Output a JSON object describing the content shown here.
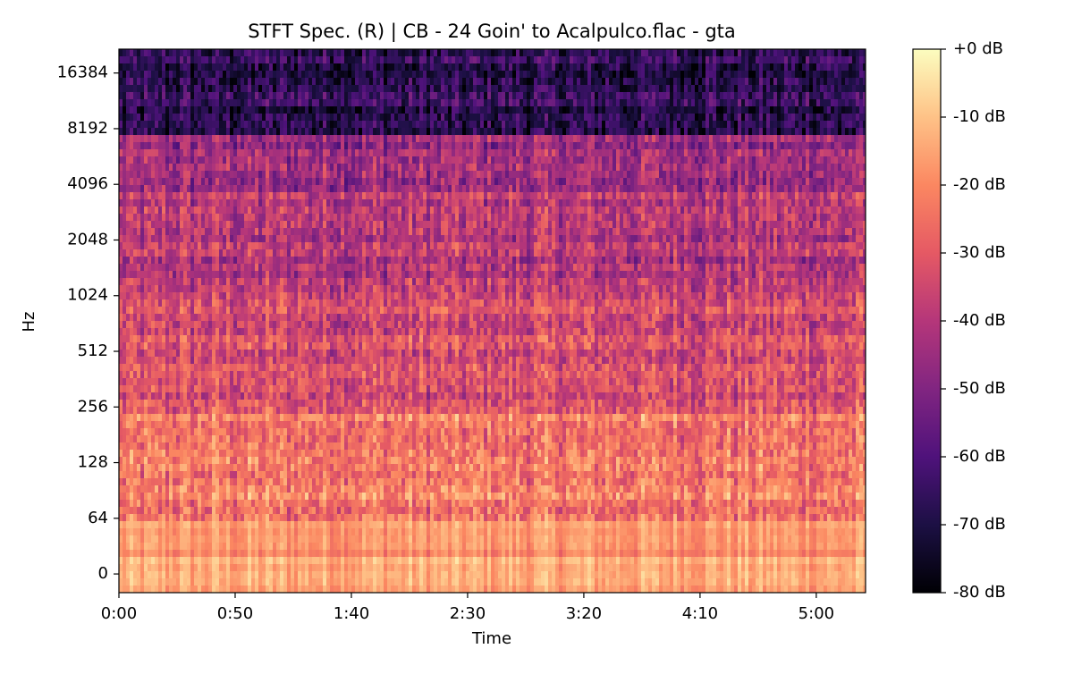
{
  "chart_data": {
    "type": "spectrogram",
    "title": "STFT Spec. (R) | CB - 24 Goin' to Acalpulco.flac - gta",
    "x_label": "Time",
    "y_label": "Hz",
    "xlim": [
      0,
      321.2
    ],
    "xticks": [
      {
        "value": 0,
        "label": "0:00"
      },
      {
        "value": 50,
        "label": "0:50"
      },
      {
        "value": 100,
        "label": "1:40"
      },
      {
        "value": 150,
        "label": "2:30"
      },
      {
        "value": 200,
        "label": "3:20"
      },
      {
        "value": 250,
        "label": "4:10"
      },
      {
        "value": 300,
        "label": "5:00"
      }
    ],
    "yscale": "symlog",
    "ylinthresh": 64,
    "ylim": [
      -21.5,
      22050
    ],
    "yticks": [
      0,
      64,
      128,
      256,
      512,
      1024,
      2048,
      4096,
      8192,
      16384
    ],
    "colormap": "magma",
    "clim": [
      -80,
      0
    ],
    "cticks": [
      {
        "value": 0,
        "label": "+0 dB"
      },
      {
        "value": -10,
        "label": "-10 dB"
      },
      {
        "value": -20,
        "label": "-20 dB"
      },
      {
        "value": -30,
        "label": "-30 dB"
      },
      {
        "value": -40,
        "label": "-40 dB"
      },
      {
        "value": -50,
        "label": "-50 dB"
      },
      {
        "value": -60,
        "label": "-60 dB"
      },
      {
        "value": -70,
        "label": "-70 dB"
      },
      {
        "value": -80,
        "label": "-80 dB"
      }
    ]
  }
}
